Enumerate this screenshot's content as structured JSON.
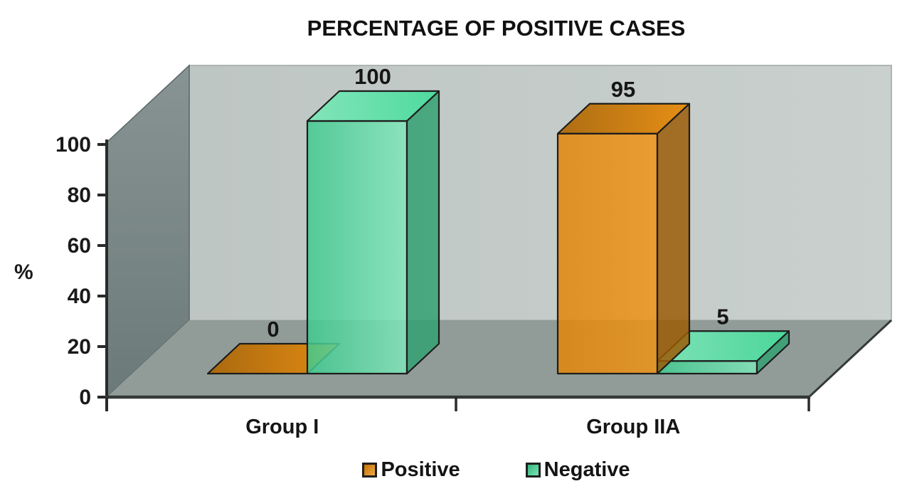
{
  "title": "PERCENTAGE OF POSITIVE CASES",
  "chart_data": {
    "type": "bar",
    "style": "3d-clustered-column",
    "title": "PERCENTAGE OF POSITIVE CASES",
    "categories": [
      "Group I",
      "Group IIA"
    ],
    "series": [
      {
        "name": "Positive",
        "color": "#ee8c06",
        "values": [
          0,
          95
        ]
      },
      {
        "name": "Negative",
        "color": "#45dc9b",
        "values": [
          100,
          5
        ]
      }
    ],
    "xlabel": "",
    "ylabel": "%",
    "yticks": [
      0,
      20,
      40,
      60,
      80,
      100
    ],
    "ylim": [
      0,
      100
    ],
    "grid": false,
    "legend_position": "bottom",
    "data_labels": true,
    "scene_colors": {
      "back_wall": "#c6cecb",
      "side_wall": "#71807f",
      "floor": "#919c98",
      "outline": "#2a2a2a"
    }
  }
}
